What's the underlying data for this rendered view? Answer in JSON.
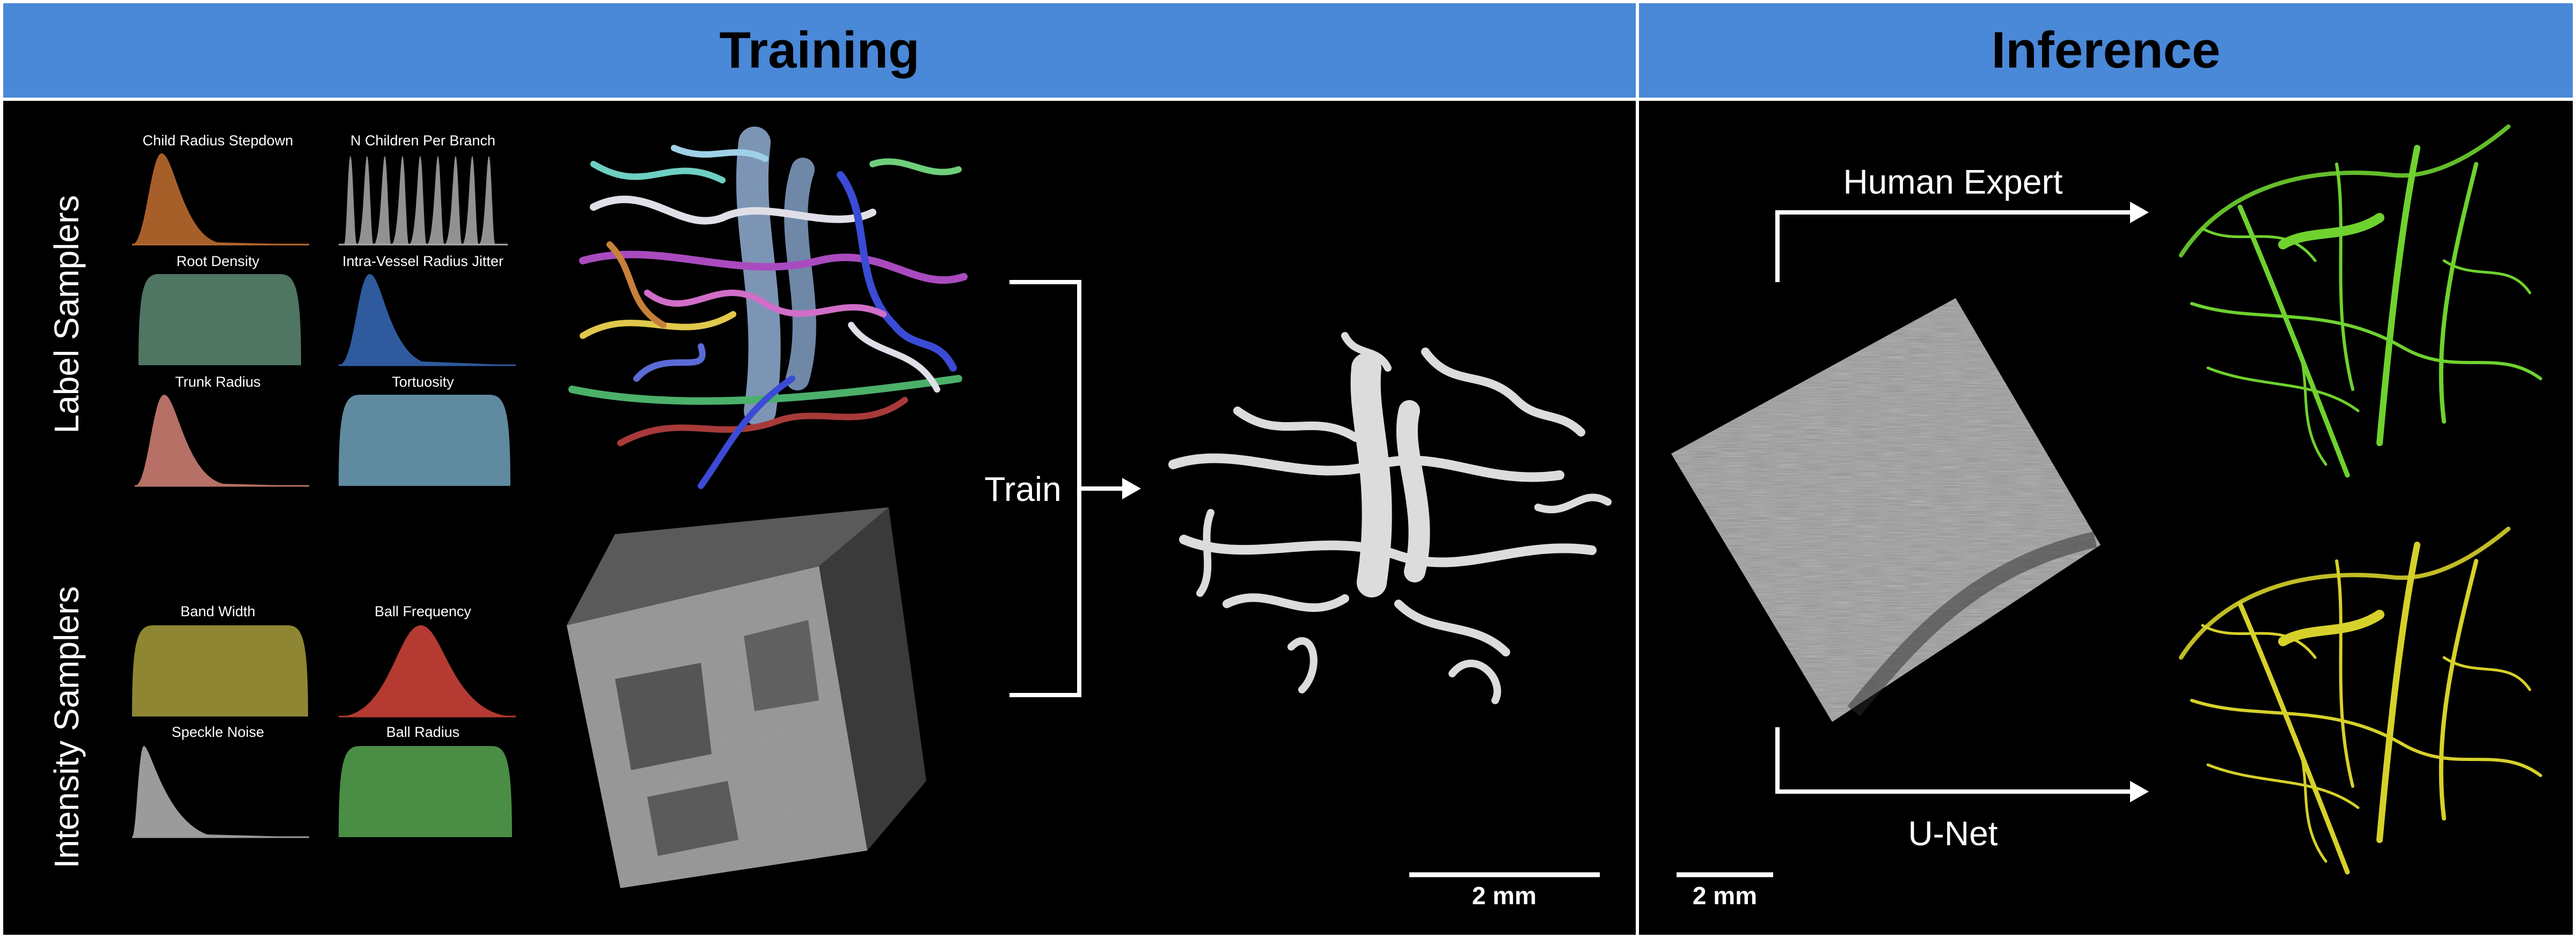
{
  "training": {
    "title": "Training",
    "label_samplers_title": "Label Samplers",
    "intensity_samplers_title": "Intensity Samplers",
    "distributions": {
      "child_radius_stepdown": "Child Radius Stepdown",
      "n_children_per_branch": "N Children Per Branch",
      "root_density": "Root Density",
      "intra_vessel_radius_jitter": "Intra-Vessel Radius Jitter",
      "trunk_radius": "Trunk Radius",
      "tortuosity": "Tortuosity",
      "band_width": "Band Width",
      "ball_frequency": "Ball Frequency",
      "speckle_noise": "Speckle Noise",
      "ball_radius": "Ball Radius"
    },
    "train_label": "Train",
    "scale_bar": "2 mm"
  },
  "inference": {
    "title": "Inference",
    "human_expert_label": "Human Expert",
    "unet_label": "U-Net",
    "scale_bar": "2 mm"
  },
  "colors": {
    "header": "#4a88d8",
    "child_radius_stepdown": "#b9692f",
    "n_children_per_branch": "#aaaaaa",
    "root_density": "#4f7563",
    "intra_vessel_radius_jitter": "#2f5a9e",
    "trunk_radius": "#b67065",
    "tortuosity": "#5f8aa0",
    "band_width": "#8e8632",
    "ball_frequency": "#b43a32",
    "speckle_noise": "#9b9b9b",
    "ball_radius": "#4a8d45",
    "human_expert": "#6fd22f",
    "unet": "#d6d12a"
  }
}
